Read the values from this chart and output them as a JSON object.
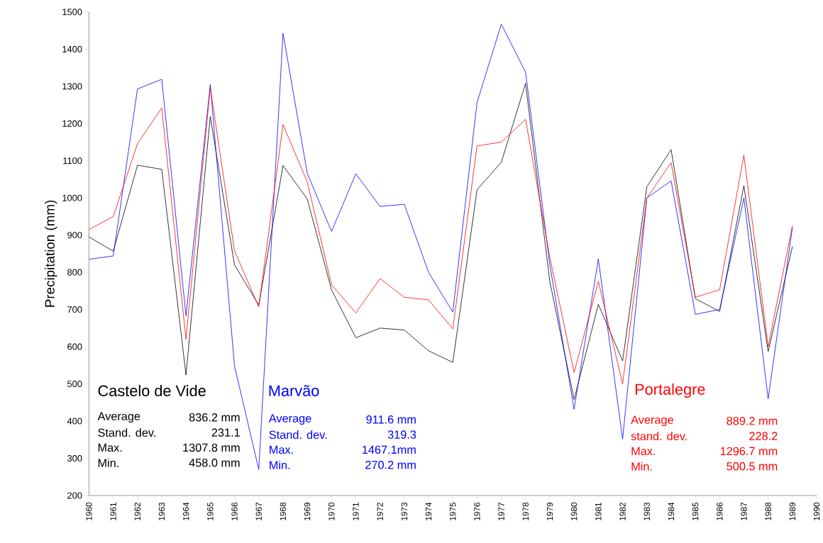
{
  "chart_data": {
    "type": "line",
    "ylabel": "Precipitation (mm)",
    "x": [
      1960,
      1961,
      1962,
      1963,
      1964,
      1965,
      1966,
      1967,
      1968,
      1969,
      1970,
      1971,
      1972,
      1973,
      1974,
      1975,
      1976,
      1977,
      1978,
      1979,
      1980,
      1981,
      1982,
      1983,
      1984,
      1985,
      1986,
      1987,
      1988,
      1989
    ],
    "xlim": [
      1960,
      1990
    ],
    "xticks": [
      1960,
      1961,
      1962,
      1963,
      1964,
      1965,
      1966,
      1967,
      1968,
      1969,
      1970,
      1971,
      1972,
      1973,
      1974,
      1975,
      1976,
      1977,
      1978,
      1979,
      1980,
      1981,
      1982,
      1983,
      1984,
      1985,
      1986,
      1987,
      1988,
      1989,
      1990
    ],
    "ylim": [
      200,
      1500
    ],
    "yticks": [
      200,
      300,
      400,
      500,
      600,
      700,
      800,
      900,
      1000,
      1100,
      1200,
      1300,
      1400,
      1500
    ],
    "series": [
      {
        "name": "Castelo de Vide",
        "color": "#000000",
        "values": [
          895,
          857,
          1088,
          1077,
          524,
          1219,
          820,
          712,
          1087,
          997,
          753,
          624,
          650,
          645,
          589,
          558,
          1022,
          1096,
          1308,
          775,
          458,
          714,
          562,
          1030,
          1130,
          729,
          695,
          1033,
          587,
          869
        ]
      },
      {
        "name": "Marvão",
        "color": "#0000ff",
        "values": [
          835,
          844,
          1293,
          1319,
          683,
          1305,
          548,
          270,
          1443,
          1066,
          910,
          1065,
          977,
          983,
          800,
          693,
          1257,
          1467,
          1338,
          820,
          432,
          836,
          352,
          1000,
          1046,
          687,
          700,
          1000,
          460,
          920
        ]
      },
      {
        "name": "Portalegre",
        "color": "#ff0000",
        "values": [
          915,
          950,
          1146,
          1242,
          620,
          1297,
          858,
          707,
          1197,
          1043,
          767,
          691,
          783,
          733,
          726,
          648,
          1140,
          1150,
          1211,
          840,
          531,
          776,
          500,
          1000,
          1095,
          733,
          753,
          1115,
          600,
          925
        ]
      }
    ],
    "annotations": [
      "Average",
      "836.2 mm",
      "Stand. dev.",
      "231.1",
      "Max.",
      "1307.8 mm",
      "Min.",
      "458.0 mm",
      "Average",
      "911.6 mm",
      "Stand. dev.",
      "319.3",
      "Max.",
      "1467.1mm",
      "Min.",
      "270.2 mm",
      "Average",
      "889.2 mm",
      "stand. dev.",
      "228.2",
      "Max.",
      "1296.7 mm",
      "Min.",
      "500.5 mm"
    ]
  }
}
